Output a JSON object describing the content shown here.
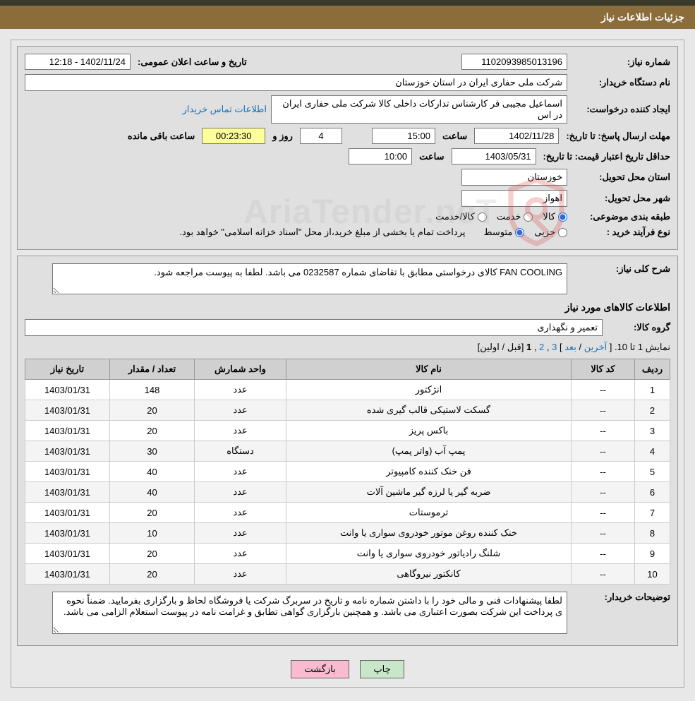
{
  "header": {
    "title": "جزئیات اطلاعات نیاز"
  },
  "info": {
    "need_number_label": "شماره نیاز:",
    "need_number": "1102093985013196",
    "announce_label": "تاریخ و ساعت اعلان عمومی:",
    "announce_value": "1402/11/24 - 12:18",
    "buyer_org_label": "نام دستگاه خریدار:",
    "buyer_org": "شرکت ملی حفاری ایران در استان خوزستان",
    "requester_label": "ایجاد کننده درخواست:",
    "requester": "اسماعیل مجیبی فر کارشناس تدارکات داخلی کالا شرکت ملی حفاری ایران در اس",
    "buyer_contact_link": "اطلاعات تماس خریدار",
    "deadline_label": "مهلت ارسال پاسخ:",
    "to_date_label": "تا تاریخ:",
    "deadline_date": "1402/11/28",
    "time_label": "ساعت",
    "deadline_time": "15:00",
    "days_label": "روز و",
    "days_value": "4",
    "countdown": "00:23:30",
    "remaining_label": "ساعت باقی مانده",
    "validity_label": "حداقل تاریخ اعتبار قیمت:",
    "validity_date": "1403/05/31",
    "validity_time": "10:00",
    "province_label": "استان محل تحویل:",
    "province": "خوزستان",
    "city_label": "شهر محل تحویل:",
    "city": "اهواز",
    "category_label": "طبقه بندی موضوعی:",
    "cat_goods": "کالا",
    "cat_service": "خدمت",
    "cat_goods_service": "کالا/خدمت",
    "process_label": "نوع فرآیند خرید :",
    "process_partial": "جزیی",
    "process_medium": "متوسط",
    "process_note": "پرداخت تمام یا بخشی از مبلغ خرید،از محل \"اسناد خزانه اسلامی\" خواهد بود."
  },
  "need": {
    "summary_label": "شرح کلی نیاز:",
    "summary": "FAN COOLING کالای درخواستی مطابق با تقاضای شماره 0232587  می باشد. لطفا به پیوست مراجعه شود.",
    "items_title": "اطلاعات کالاهای مورد نیاز",
    "group_label": "گروه کالا:",
    "group": "تعمیر و نگهداری"
  },
  "pagination": {
    "text_prefix": "نمایش 1 تا 10.",
    "last": "آخرین",
    "next": "بعد",
    "p3": "3",
    "p2": "2",
    "p1": "1",
    "prev_first": "[قبل / اولین]"
  },
  "table": {
    "headers": {
      "row": "ردیف",
      "code": "کد کالا",
      "name": "نام کالا",
      "unit": "واحد شمارش",
      "qty": "تعداد / مقدار",
      "date": "تاریخ نیاز"
    },
    "rows": [
      {
        "n": "1",
        "code": "--",
        "name": "انژکتور",
        "unit": "عدد",
        "qty": "148",
        "date": "1403/01/31"
      },
      {
        "n": "2",
        "code": "--",
        "name": "گسکت لاستیکی قالب گیری شده",
        "unit": "عدد",
        "qty": "20",
        "date": "1403/01/31"
      },
      {
        "n": "3",
        "code": "--",
        "name": "باکس پریز",
        "unit": "عدد",
        "qty": "20",
        "date": "1403/01/31"
      },
      {
        "n": "4",
        "code": "--",
        "name": "پمپ آب (واتر پمپ)",
        "unit": "دستگاه",
        "qty": "30",
        "date": "1403/01/31"
      },
      {
        "n": "5",
        "code": "--",
        "name": "فن خنک کننده کامپیوتر",
        "unit": "عدد",
        "qty": "40",
        "date": "1403/01/31"
      },
      {
        "n": "6",
        "code": "--",
        "name": "ضربه گیر یا لرزه گیر ماشین آلات",
        "unit": "عدد",
        "qty": "40",
        "date": "1403/01/31"
      },
      {
        "n": "7",
        "code": "--",
        "name": "ترموستات",
        "unit": "عدد",
        "qty": "20",
        "date": "1403/01/31"
      },
      {
        "n": "8",
        "code": "--",
        "name": "خنک کننده روغن موتور خودروی سواری یا وانت",
        "unit": "عدد",
        "qty": "10",
        "date": "1403/01/31"
      },
      {
        "n": "9",
        "code": "--",
        "name": "شلنگ رادیاتور خودروی سواری یا وانت",
        "unit": "عدد",
        "qty": "20",
        "date": "1403/01/31"
      },
      {
        "n": "10",
        "code": "--",
        "name": "کانکتور نیروگاهی",
        "unit": "عدد",
        "qty": "20",
        "date": "1403/01/31"
      }
    ]
  },
  "buyer_notes": {
    "label": "توضیحات خریدار:",
    "text": "لطفا پیشنهادات فنی و مالی خود را با داشتن شماره نامه و تاریخ در سربرگ شرکت یا فروشگاه لحاظ و بارگزاری بفرمایید. ضمناً نحوه ی پرداخت این شرکت بصورت اعتباری می باشد. و همچنین بارگزاری گواهی تطابق و غرامت نامه در پیوست استعلام الزامی می باشد."
  },
  "buttons": {
    "print": "چاپ",
    "back": "بازگشت"
  },
  "watermark": {
    "text": "AriaTender.neT"
  },
  "colors": {
    "header_bg": "#8a6d3b",
    "header_top": "#3a3a2a",
    "page_bg": "#e8e8e8",
    "section_bg": "#e0e0e0",
    "link": "#1a6fb3",
    "countdown_bg": "#ffff99",
    "th_bg": "#d0d0d0",
    "btn_print": "#c8e6c9",
    "btn_back": "#f8bbd0",
    "shield_color": "#d64541"
  }
}
